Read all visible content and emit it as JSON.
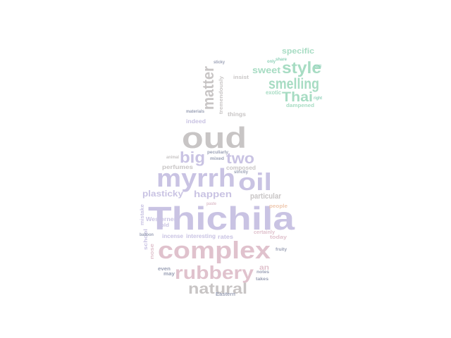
{
  "palette": {
    "lavender": "#c9c3e3",
    "grey": "#c8c5c5",
    "pink": "#e0c2cd",
    "mint": "#a7dcc3",
    "slate": "#9aa0b5",
    "peach": "#efc9b0",
    "teal": "#8fd1b9"
  },
  "words": [
    {
      "text": "Thichila",
      "color": "lavender"
    },
    {
      "text": "complex",
      "color": "pink"
    },
    {
      "text": "oud",
      "color": "grey"
    },
    {
      "text": "myrrh",
      "color": "lavender"
    },
    {
      "text": "oil",
      "color": "lavender"
    },
    {
      "text": "rubbery",
      "color": "pink"
    },
    {
      "text": "natural",
      "color": "grey"
    },
    {
      "text": "big",
      "color": "lavender"
    },
    {
      "text": "two",
      "color": "lavender"
    },
    {
      "text": "matter",
      "color": "grey"
    },
    {
      "text": "style",
      "color": "mint"
    },
    {
      "text": "smelling",
      "color": "mint"
    },
    {
      "text": "Thai",
      "color": "mint"
    },
    {
      "text": "sweet",
      "color": "mint"
    },
    {
      "text": "specific",
      "color": "mint"
    },
    {
      "text": "exotic",
      "color": "mint"
    },
    {
      "text": "happen",
      "color": "lavender"
    },
    {
      "text": "plasticky",
      "color": "lavender"
    },
    {
      "text": "particular",
      "color": "grey"
    },
    {
      "text": "perfumes",
      "color": "grey"
    },
    {
      "text": "composed",
      "color": "grey"
    },
    {
      "text": "Westerners",
      "color": "lavender"
    },
    {
      "text": "incense",
      "color": "lavender"
    },
    {
      "text": "interesting",
      "color": "lavender"
    },
    {
      "text": "rates",
      "color": "lavender"
    },
    {
      "text": "things",
      "color": "grey"
    },
    {
      "text": "indeed",
      "color": "lavender"
    },
    {
      "text": "tremendously",
      "color": "grey"
    },
    {
      "text": "insist",
      "color": "grey"
    },
    {
      "text": "even",
      "color": "slate"
    },
    {
      "text": "may",
      "color": "slate"
    },
    {
      "text": "Eastern",
      "color": "slate"
    },
    {
      "text": "school",
      "color": "lavender"
    },
    {
      "text": "mistake",
      "color": "lavender"
    },
    {
      "text": "balloon",
      "color": "slate"
    },
    {
      "text": "old",
      "color": "lavender"
    },
    {
      "text": "materials",
      "color": "slate"
    },
    {
      "text": "people",
      "color": "peach"
    },
    {
      "text": "today",
      "color": "pink"
    },
    {
      "text": "certainly",
      "color": "pink"
    },
    {
      "text": "fruity",
      "color": "slate"
    },
    {
      "text": "takes",
      "color": "slate"
    },
    {
      "text": "notes",
      "color": "slate"
    },
    {
      "text": "dampened",
      "color": "mint"
    },
    {
      "text": "share",
      "color": "teal"
    },
    {
      "text": "only",
      "color": "teal"
    },
    {
      "text": "tell",
      "color": "teal"
    },
    {
      "text": "right",
      "color": "teal"
    },
    {
      "text": "peculiarly",
      "color": "slate"
    },
    {
      "text": "mixed",
      "color": "slate"
    },
    {
      "text": "strictly",
      "color": "slate"
    },
    {
      "text": "sticky",
      "color": "slate"
    },
    {
      "text": "paste",
      "color": "pink"
    },
    {
      "text": "an",
      "color": "pink"
    },
    {
      "text": "nose",
      "color": "pink"
    },
    {
      "text": "animal",
      "color": "grey"
    }
  ]
}
